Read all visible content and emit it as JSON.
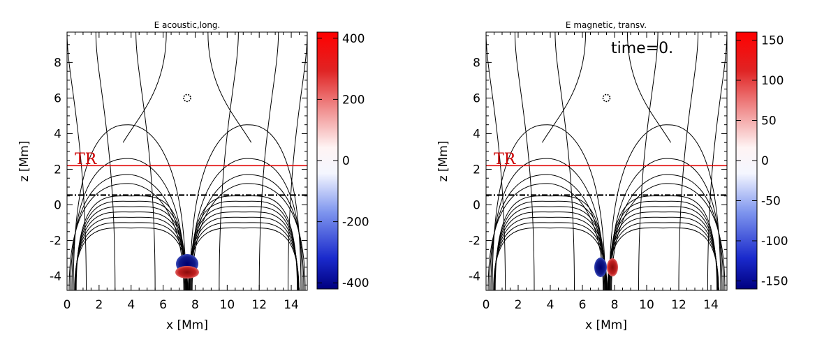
{
  "chart_data": [
    {
      "type": "contour",
      "title": "E acoustic,long.",
      "xlabel": "x [Mm]",
      "ylabel": "z [Mm]",
      "xlim": [
        0,
        15
      ],
      "ylim": [
        -4.8,
        9.7
      ],
      "xticks": [
        "0",
        "2",
        "4",
        "6",
        "8",
        "10",
        "12",
        "14"
      ],
      "yticks": [
        "-4",
        "-2",
        "0",
        "2",
        "4",
        "6",
        "8"
      ],
      "annotation": "TR",
      "tr_height": 2.2,
      "dashed_line_height": 0.55,
      "null_point": [
        7.5,
        6.0
      ],
      "colorbar": {
        "min": -420,
        "max": 420,
        "ticks": [
          "400",
          "200",
          "0",
          "-200",
          "-400"
        ],
        "tick_values": [
          400,
          200,
          0,
          -200,
          -400
        ]
      },
      "field_feature": "longitudinal blob",
      "blob_center": [
        7.6,
        -3.7
      ],
      "time_label": ""
    },
    {
      "type": "contour",
      "title": "E magnetic, transv.",
      "xlabel": "x [Mm]",
      "ylabel": "z [Mm]",
      "xlim": [
        0,
        15
      ],
      "ylim": [
        -4.8,
        9.7
      ],
      "xticks": [
        "0",
        "2",
        "4",
        "6",
        "8",
        "10",
        "12",
        "14"
      ],
      "yticks": [
        "-4",
        "-2",
        "0",
        "2",
        "4",
        "6",
        "8"
      ],
      "annotation": "TR",
      "tr_height": 2.2,
      "dashed_line_height": 0.55,
      "null_point": [
        7.5,
        6.0
      ],
      "colorbar": {
        "min": -160,
        "max": 160,
        "ticks": [
          "150",
          "100",
          "50",
          "0",
          "-50",
          "-100",
          "-150"
        ],
        "tick_values": [
          150,
          100,
          50,
          0,
          -50,
          -100,
          -150
        ]
      },
      "field_feature": "transverse pair",
      "blob_center": [
        7.6,
        -3.6
      ],
      "time_label": "time=0."
    }
  ]
}
